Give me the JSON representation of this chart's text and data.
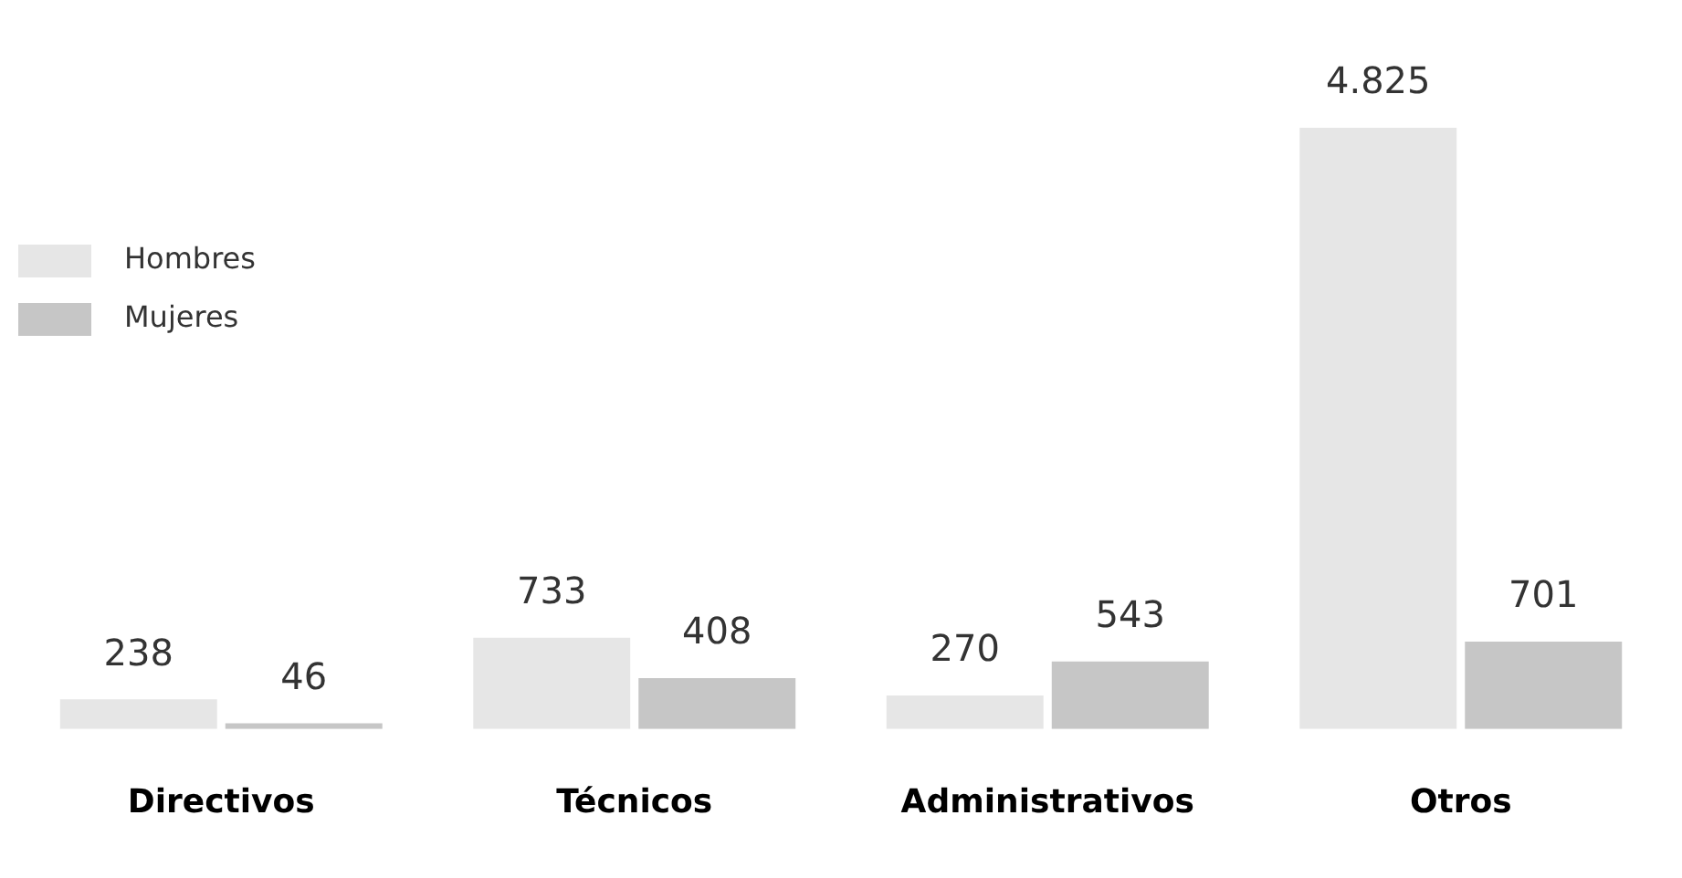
{
  "chart_data": {
    "type": "bar",
    "categories": [
      "Directivos",
      "Técnicos",
      "Administrativos",
      "Otros"
    ],
    "series": [
      {
        "name": "Hombres",
        "color": "#e6e6e6",
        "values": [
          238,
          733,
          270,
          4825
        ],
        "value_labels": [
          "238",
          "733",
          "270",
          "4.825"
        ]
      },
      {
        "name": "Mujeres",
        "color": "#c6c6c6",
        "values": [
          46,
          408,
          543,
          701
        ],
        "value_labels": [
          "46",
          "408",
          "543",
          "701"
        ]
      }
    ],
    "legend": "top left",
    "grid": false
  }
}
